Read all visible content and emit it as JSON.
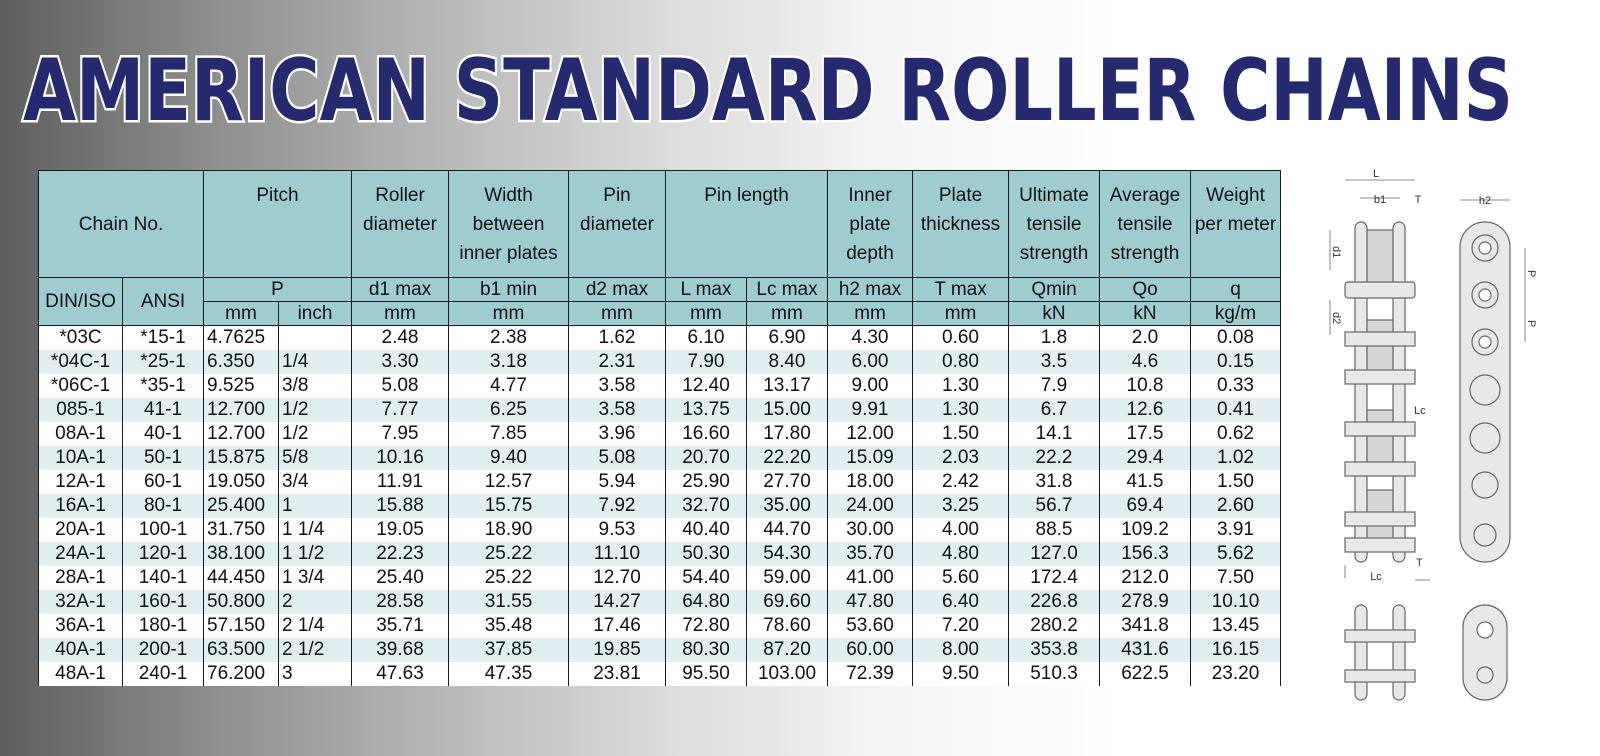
{
  "title": "AMERICAN STANDARD ROLLER CHAINS",
  "table": {
    "header_top": [
      "Chain No.",
      "Pitch",
      "Roller diameter",
      "Width between inner plates",
      "Pin diameter",
      "Pin length",
      "Inner plate depth",
      "Plate thickness",
      "Ultimate tensile strength",
      "Average tensile strength",
      "Weight per meter"
    ],
    "symbols": [
      "DIN/ISO",
      "ANSI",
      "P",
      "d1 max",
      "b1 min",
      "d2 max",
      "L max",
      "Lc max",
      "h2 max",
      "T max",
      "Qmin",
      "Qo",
      "q"
    ],
    "units": [
      "mm",
      "inch",
      "mm",
      "mm",
      "mm",
      "mm",
      "mm",
      "mm",
      "mm",
      "kN",
      "kN",
      "kg/m"
    ],
    "rows": [
      [
        "*03C",
        "*15-1",
        "4.7625",
        null,
        "2.48",
        "2.38",
        "1.62",
        "6.10",
        "6.90",
        "4.30",
        "0.60",
        "1.8",
        "2.0",
        "0.08"
      ],
      [
        "*04C-1",
        "*25-1",
        "6.350",
        "1/4",
        "3.30",
        "3.18",
        "2.31",
        "7.90",
        "8.40",
        "6.00",
        "0.80",
        "3.5",
        "4.6",
        "0.15"
      ],
      [
        "*06C-1",
        "*35-1",
        "9.525",
        "3/8",
        "5.08",
        "4.77",
        "3.58",
        "12.40",
        "13.17",
        "9.00",
        "1.30",
        "7.9",
        "10.8",
        "0.33"
      ],
      [
        "085-1",
        "41-1",
        "12.700",
        "1/2",
        "7.77",
        "6.25",
        "3.58",
        "13.75",
        "15.00",
        "9.91",
        "1.30",
        "6.7",
        "12.6",
        "0.41"
      ],
      [
        "08A-1",
        "40-1",
        "12.700",
        "1/2",
        "7.95",
        "7.85",
        "3.96",
        "16.60",
        "17.80",
        "12.00",
        "1.50",
        "14.1",
        "17.5",
        "0.62"
      ],
      [
        "10A-1",
        "50-1",
        "15.875",
        "5/8",
        "10.16",
        "9.40",
        "5.08",
        "20.70",
        "22.20",
        "15.09",
        "2.03",
        "22.2",
        "29.4",
        "1.02"
      ],
      [
        "12A-1",
        "60-1",
        "19.050",
        "3/4",
        "11.91",
        "12.57",
        "5.94",
        "25.90",
        "27.70",
        "18.00",
        "2.42",
        "31.8",
        "41.5",
        "1.50"
      ],
      [
        "16A-1",
        "80-1",
        "25.400",
        "1",
        "15.88",
        "15.75",
        "7.92",
        "32.70",
        "35.00",
        "24.00",
        "3.25",
        "56.7",
        "69.4",
        "2.60"
      ],
      [
        "20A-1",
        "100-1",
        "31.750",
        "1 1/4",
        "19.05",
        "18.90",
        "9.53",
        "40.40",
        "44.70",
        "30.00",
        "4.00",
        "88.5",
        "109.2",
        "3.91"
      ],
      [
        "24A-1",
        "120-1",
        "38.100",
        "1 1/2",
        "22.23",
        "25.22",
        "11.10",
        "50.30",
        "54.30",
        "35.70",
        "4.80",
        "127.0",
        "156.3",
        "5.62"
      ],
      [
        "28A-1",
        "140-1",
        "44.450",
        "1 3/4",
        "25.40",
        "25.22",
        "12.70",
        "54.40",
        "59.00",
        "41.00",
        "5.60",
        "172.4",
        "212.0",
        "7.50"
      ],
      [
        "32A-1",
        "160-1",
        "50.800",
        "2",
        "28.58",
        "31.55",
        "14.27",
        "64.80",
        "69.60",
        "47.80",
        "6.40",
        "226.8",
        "278.9",
        "10.10"
      ],
      [
        "36A-1",
        "180-1",
        "57.150",
        "2 1/4",
        "35.71",
        "35.48",
        "17.46",
        "72.80",
        "78.60",
        "53.60",
        "7.20",
        "280.2",
        "341.8",
        "13.45"
      ],
      [
        "40A-1",
        "200-1",
        "63.500",
        "2 1/2",
        "39.68",
        "37.85",
        "19.85",
        "80.30",
        "87.20",
        "60.00",
        "8.00",
        "353.8",
        "431.6",
        "16.15"
      ],
      [
        "48A-1",
        "240-1",
        "76.200",
        "3",
        "47.63",
        "47.35",
        "23.81",
        "95.50",
        "103.00",
        "72.39",
        "9.50",
        "510.3",
        "622.5",
        "23.20"
      ]
    ]
  },
  "diagram": {
    "labels": [
      "L",
      "b1",
      "T",
      "h2",
      "d1",
      "P",
      "P",
      "d2",
      "Lc",
      "T",
      "Lc"
    ]
  }
}
